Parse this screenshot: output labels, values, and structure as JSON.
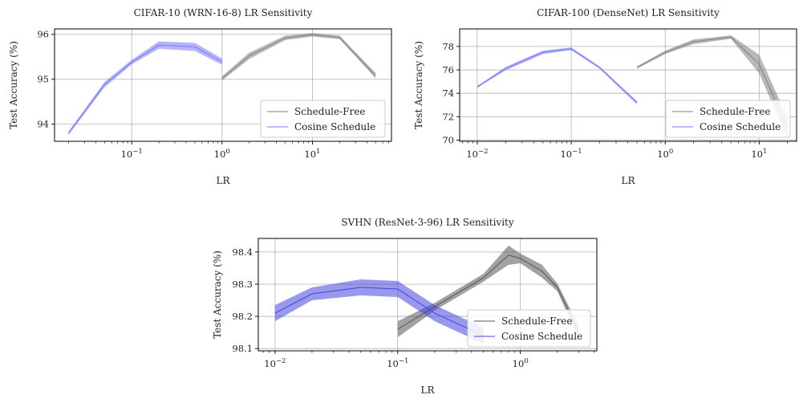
{
  "chart_data": [
    {
      "type": "line",
      "title": "CIFAR-10 (WRN-16-8) LR Sensitivity",
      "xlabel": "LR",
      "ylabel": "Test Accuracy (%)",
      "xscale": "log",
      "xlim": [
        0.014,
        75
      ],
      "ylim": [
        93.62,
        96.12
      ],
      "xticks": [
        {
          "v": 0.1,
          "base": "10",
          "exp": "−1"
        },
        {
          "v": 1,
          "base": "10",
          "exp": "0"
        },
        {
          "v": 10,
          "base": "10",
          "exp": "1"
        }
      ],
      "yticks": [
        {
          "v": 94,
          "label": "94"
        },
        {
          "v": 95,
          "label": "95"
        },
        {
          "v": 96,
          "label": "96"
        }
      ],
      "grid": true,
      "legend_position": "bottom-right",
      "series": [
        {
          "name": "Schedule-Free",
          "color": "#808080",
          "x": [
            1,
            2,
            5,
            10,
            20,
            50
          ],
          "y": [
            95.02,
            95.52,
            95.92,
            95.99,
            95.93,
            95.08
          ],
          "band": [
            0.05,
            0.07,
            0.05,
            0.04,
            0.04,
            0.06
          ]
        },
        {
          "name": "Cosine Schedule",
          "color": "#7777ff",
          "x": [
            0.02,
            0.05,
            0.1,
            0.2,
            0.5,
            1
          ],
          "y": [
            93.8,
            94.88,
            95.38,
            95.76,
            95.72,
            95.39
          ],
          "band": [
            0.04,
            0.06,
            0.05,
            0.08,
            0.09,
            0.07
          ]
        }
      ]
    },
    {
      "type": "line",
      "title": "CIFAR-100 (DenseNet) LR Sensitivity",
      "xlabel": "LR",
      "ylabel": "Test Accuracy (%)",
      "xscale": "log",
      "xlim": [
        0.0065,
        25
      ],
      "ylim": [
        69.9,
        79.5
      ],
      "xticks": [
        {
          "v": 0.01,
          "base": "10",
          "exp": "−2"
        },
        {
          "v": 0.1,
          "base": "10",
          "exp": "−1"
        },
        {
          "v": 1,
          "base": "10",
          "exp": "0"
        },
        {
          "v": 10,
          "base": "10",
          "exp": "1"
        }
      ],
      "yticks": [
        {
          "v": 70,
          "label": "70"
        },
        {
          "v": 72,
          "label": "72"
        },
        {
          "v": 74,
          "label": "74"
        },
        {
          "v": 76,
          "label": "76"
        },
        {
          "v": 78,
          "label": "78"
        }
      ],
      "grid": true,
      "legend_position": "bottom-right",
      "series": [
        {
          "name": "Schedule-Free",
          "color": "#808080",
          "x": [
            0.5,
            1,
            2,
            5,
            10,
            20
          ],
          "y": [
            76.2,
            77.5,
            78.4,
            78.8,
            76.5,
            71.0
          ],
          "band": [
            0.1,
            0.15,
            0.2,
            0.15,
            0.8,
            0.9
          ]
        },
        {
          "name": "Cosine Schedule",
          "color": "#7777ff",
          "x": [
            0.01,
            0.02,
            0.05,
            0.1,
            0.2,
            0.5
          ],
          "y": [
            74.55,
            76.1,
            77.5,
            77.8,
            76.2,
            73.2
          ],
          "band": [
            0.08,
            0.15,
            0.15,
            0.12,
            0.1,
            0.15
          ]
        }
      ]
    },
    {
      "type": "line",
      "title": "SVHN (ResNet-3-96) LR Sensitivity",
      "xlabel": "LR",
      "ylabel": "Test Accuracy (%)",
      "xscale": "log",
      "xlim": [
        0.0073,
        4.2
      ],
      "ylim": [
        98.093,
        98.442
      ],
      "xticks": [
        {
          "v": 0.01,
          "base": "10",
          "exp": "−2"
        },
        {
          "v": 0.1,
          "base": "10",
          "exp": "−1"
        },
        {
          "v": 1,
          "base": "10",
          "exp": "0"
        }
      ],
      "yticks": [
        {
          "v": 98.1,
          "label": "98.1"
        },
        {
          "v": 98.2,
          "label": "98.2"
        },
        {
          "v": 98.3,
          "label": "98.3"
        },
        {
          "v": 98.4,
          "label": "98.4"
        }
      ],
      "grid": true,
      "legend_position": "bottom-right",
      "series": [
        {
          "name": "Schedule-Free",
          "color": "#555555",
          "x": [
            0.1,
            0.2,
            0.5,
            0.8,
            1,
            1.5,
            2,
            3
          ],
          "y": [
            98.16,
            98.23,
            98.32,
            98.39,
            98.38,
            98.34,
            98.29,
            98.15
          ],
          "band": [
            0.025,
            0.012,
            0.012,
            0.03,
            0.015,
            0.02,
            0.012,
            0.02
          ]
        },
        {
          "name": "Cosine Schedule",
          "color": "#4444dd",
          "x": [
            0.01,
            0.02,
            0.05,
            0.1,
            0.2,
            0.5
          ],
          "y": [
            98.21,
            98.27,
            98.29,
            98.285,
            98.21,
            98.14
          ],
          "band": [
            0.025,
            0.02,
            0.025,
            0.025,
            0.025,
            0.025
          ]
        }
      ]
    }
  ]
}
